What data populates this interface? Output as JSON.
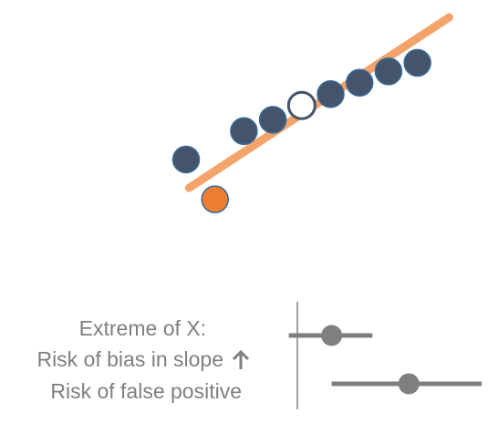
{
  "scatter": {
    "points": [
      {
        "x": 1,
        "y": 2.0,
        "style": "filled"
      },
      {
        "x": 2,
        "y": 0.6,
        "style": "outlier"
      },
      {
        "x": 3,
        "y": 3.0,
        "style": "filled"
      },
      {
        "x": 4,
        "y": 3.4,
        "style": "filled"
      },
      {
        "x": 5,
        "y": 3.9,
        "style": "hollow"
      },
      {
        "x": 6,
        "y": 4.3,
        "style": "filled"
      },
      {
        "x": 7,
        "y": 4.7,
        "style": "filled"
      },
      {
        "x": 8,
        "y": 5.1,
        "style": "filled"
      },
      {
        "x": 9,
        "y": 5.4,
        "style": "filled"
      }
    ],
    "fit_line": {
      "x_start": 1.1,
      "y_start": 1.0,
      "x_end": 10.1,
      "y_end": 7.0
    },
    "colors": {
      "filled": "#44546a",
      "filled_stroke": "#3a6a9b",
      "outlier": "#ed7d31",
      "hollow_stroke": "#44546a",
      "fit_line": "#f4a46a"
    }
  },
  "legend": {
    "line1": "Extreme of X:",
    "line2": "Risk of bias in slope",
    "line2_icon": "arrow-up-icon",
    "line3": "Risk of false positive"
  },
  "forest": {
    "scale": [
      0,
      10
    ],
    "reference": 0,
    "rows": [
      {
        "estimate": 1.6,
        "low": -0.4,
        "high": 3.5
      },
      {
        "estimate": 5.2,
        "low": 1.6,
        "high": 8.6
      }
    ],
    "color": "#7f7f7f"
  }
}
